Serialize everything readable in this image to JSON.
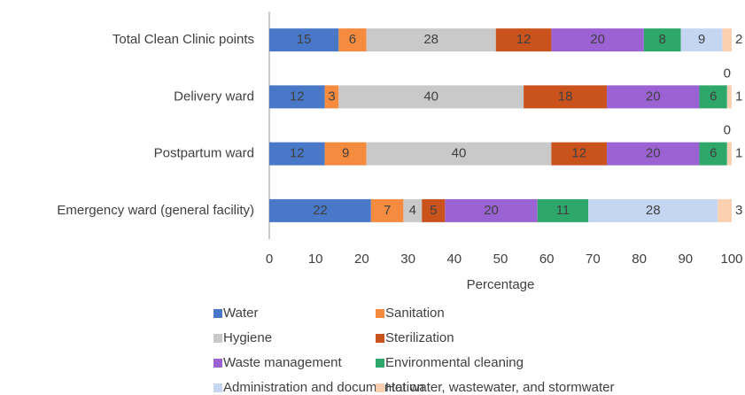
{
  "chart_data": {
    "type": "stacked-bar-horizontal",
    "categories": [
      "Total Clean Clinic points",
      "Delivery ward",
      "Postpartum ward",
      "Emergency ward (general facility)"
    ],
    "series": [
      {
        "name": "Water",
        "color": "#4a78c8",
        "values": [
          15,
          12,
          12,
          22
        ]
      },
      {
        "name": "Sanitation",
        "color": "#f58b3e",
        "values": [
          6,
          3,
          9,
          7
        ]
      },
      {
        "name": "Hygiene",
        "color": "#c9c9c9",
        "values": [
          28,
          40,
          40,
          4
        ]
      },
      {
        "name": "Sterilization",
        "color": "#c9521d",
        "values": [
          12,
          18,
          12,
          5
        ]
      },
      {
        "name": "Waste management",
        "color": "#9b62d3",
        "values": [
          20,
          20,
          20,
          20
        ]
      },
      {
        "name": "Environmental cleaning",
        "color": "#2ea86a",
        "values": [
          8,
          6,
          6,
          11
        ]
      },
      {
        "name": "Administration and documentation",
        "color": "#c4d6f1",
        "values": [
          9,
          0,
          0,
          28
        ]
      },
      {
        "name": "Hot water, wastewater, and stormwater",
        "color": "#fbd0b0",
        "values": [
          2,
          1,
          1,
          3
        ]
      }
    ],
    "x_label": "Percentage",
    "xlim": [
      0,
      100
    ],
    "xticks": [
      0,
      10,
      20,
      30,
      40,
      50,
      60,
      70,
      80,
      90,
      100
    ],
    "legend_position": "bottom"
  }
}
